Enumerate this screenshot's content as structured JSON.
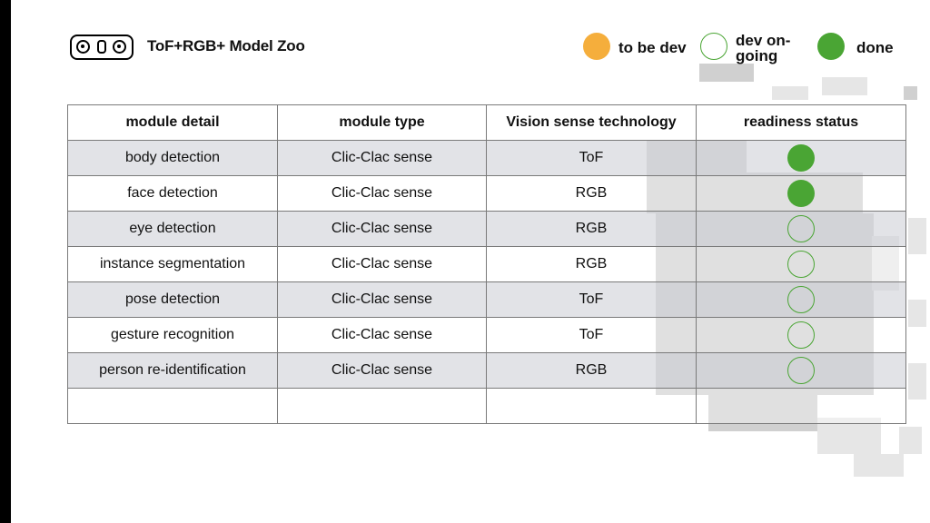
{
  "header": {
    "title": "ToF+RGB+ Model Zoo"
  },
  "legend": [
    {
      "label": "to be dev",
      "color": "#f5ae3c",
      "style": "filled"
    },
    {
      "label": "dev on-\ngoing",
      "color": "#4aa534",
      "style": "outline"
    },
    {
      "label": "done",
      "color": "#4aa534",
      "style": "filled"
    }
  ],
  "table": {
    "columns": [
      "module detail",
      "module type",
      "Vision sense technology",
      "readiness status"
    ],
    "rows": [
      {
        "detail": "body detection",
        "type": "Clic-Clac sense",
        "tech": "ToF",
        "status": "done"
      },
      {
        "detail": "face detection",
        "type": "Clic-Clac sense",
        "tech": "RGB",
        "status": "done"
      },
      {
        "detail": "eye detection",
        "type": "Clic-Clac sense",
        "tech": "RGB",
        "status": "ongoing"
      },
      {
        "detail": "instance segmentation",
        "type": "Clic-Clac sense",
        "tech": "RGB",
        "status": "ongoing"
      },
      {
        "detail": "pose detection",
        "type": "Clic-Clac sense",
        "tech": "ToF",
        "status": "ongoing"
      },
      {
        "detail": "gesture recognition",
        "type": "Clic-Clac sense",
        "tech": "ToF",
        "status": "ongoing"
      },
      {
        "detail": "person re-identification",
        "type": "Clic-Clac sense",
        "tech": "RGB",
        "status": "ongoing"
      },
      {
        "detail": "",
        "type": "",
        "tech": "",
        "status": ""
      }
    ]
  }
}
